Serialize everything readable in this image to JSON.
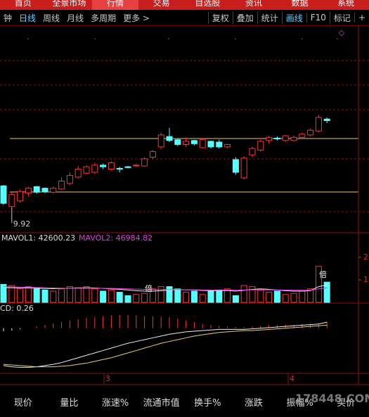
{
  "top_tabs": [
    "首页",
    "全景市场",
    "行情",
    "交易",
    "自选股",
    "资讯",
    "数据",
    "系统"
  ],
  "period_tabs": [
    "钟",
    "日线",
    "周线",
    "月线",
    "多周期",
    "更多 >"
  ],
  "tools": [
    "复权",
    "叠加",
    "统计",
    "画线",
    "F10",
    "标记",
    "+"
  ],
  "chart_data": {
    "type": "candlestick",
    "ylim": [
      9.6,
      12.2
    ],
    "open": [
      10.19,
      9.93,
      10.0,
      10.1,
      10.18,
      10.16,
      10.11,
      10.15,
      10.22,
      10.3,
      10.35,
      10.36,
      10.45,
      10.4,
      10.41,
      10.43,
      10.44,
      10.44,
      10.55,
      10.68,
      10.81,
      10.77,
      10.71,
      10.76,
      10.67,
      10.75,
      10.74,
      10.68,
      10.52,
      10.29,
      10.58,
      10.64,
      10.76,
      10.79,
      10.76,
      10.76,
      10.8,
      10.83,
      10.88,
      11.03
    ],
    "high": [
      10.2,
      10.12,
      10.14,
      10.18,
      10.19,
      10.17,
      10.18,
      10.3,
      10.36,
      10.44,
      10.45,
      10.48,
      10.47,
      10.5,
      10.43,
      10.44,
      10.47,
      10.55,
      10.64,
      10.86,
      10.92,
      10.78,
      10.8,
      10.77,
      10.79,
      10.76,
      10.77,
      10.72,
      10.55,
      10.56,
      10.68,
      10.77,
      10.82,
      10.81,
      10.83,
      10.82,
      10.86,
      10.91,
      11.08,
      11.05
    ],
    "low": [
      9.95,
      9.92,
      9.98,
      10.06,
      10.09,
      10.1,
      10.09,
      10.14,
      10.2,
      10.28,
      10.33,
      10.34,
      10.4,
      10.38,
      10.36,
      10.41,
      10.43,
      10.43,
      10.53,
      10.65,
      10.74,
      10.69,
      10.68,
      10.7,
      10.66,
      10.66,
      10.66,
      10.66,
      10.33,
      10.27,
      10.55,
      10.62,
      10.72,
      10.76,
      10.74,
      10.75,
      10.78,
      10.81,
      10.86,
      10.98
    ],
    "close": [
      9.97,
      10.08,
      10.12,
      10.16,
      10.11,
      10.12,
      10.16,
      10.25,
      10.32,
      10.4,
      10.43,
      10.45,
      10.43,
      10.48,
      10.4,
      10.42,
      10.45,
      10.53,
      10.62,
      10.83,
      10.76,
      10.71,
      10.75,
      10.72,
      10.77,
      10.68,
      10.68,
      10.71,
      10.36,
      10.54,
      10.66,
      10.75,
      10.8,
      10.78,
      10.82,
      10.8,
      10.84,
      10.89,
      11.05,
      11.01
    ],
    "low_label": 9.92,
    "up_color": "#ff3232",
    "down_color": "#54ffff",
    "volume": {
      "label1": "MAVOL1: 42600.23",
      "label2": "MAVOL2: 46984.82",
      "ylim": [
        0,
        3
      ],
      "yticks": [
        1,
        2
      ],
      "values": [
        0.8,
        0.75,
        0.6,
        0.7,
        0.6,
        0.55,
        0.5,
        0.6,
        0.7,
        0.65,
        0.7,
        0.6,
        0.5,
        0.55,
        0.45,
        0.3,
        0.35,
        0.4,
        0.6,
        0.7,
        0.7,
        0.6,
        0.45,
        0.5,
        0.35,
        0.5,
        0.55,
        0.6,
        0.3,
        0.75,
        0.7,
        0.55,
        0.45,
        0.5,
        0.35,
        0.4,
        0.5,
        0.6,
        1.6,
        0.9
      ],
      "ma1": [
        0.66,
        0.65,
        0.64,
        0.64,
        0.63,
        0.62,
        0.61,
        0.62,
        0.63,
        0.64,
        0.65,
        0.64,
        0.62,
        0.6,
        0.58,
        0.55,
        0.52,
        0.5,
        0.5,
        0.52,
        0.55,
        0.56,
        0.56,
        0.55,
        0.53,
        0.52,
        0.52,
        0.53,
        0.5,
        0.54,
        0.58,
        0.6,
        0.58,
        0.55,
        0.52,
        0.5,
        0.5,
        0.52,
        0.7,
        0.78
      ],
      "ma2": [
        0.7,
        0.69,
        0.68,
        0.67,
        0.66,
        0.65,
        0.64,
        0.63,
        0.63,
        0.63,
        0.63,
        0.63,
        0.62,
        0.62,
        0.61,
        0.6,
        0.59,
        0.58,
        0.57,
        0.57,
        0.57,
        0.57,
        0.56,
        0.56,
        0.55,
        0.55,
        0.55,
        0.55,
        0.54,
        0.55,
        0.56,
        0.56,
        0.56,
        0.55,
        0.55,
        0.54,
        0.54,
        0.54,
        0.6,
        0.65
      ],
      "marker": "倍"
    },
    "macd": {
      "label": "CD: 0.26",
      "ylim": [
        -0.75,
        0.3
      ],
      "bars": [
        -0.05,
        -0.04,
        -0.02,
        0,
        0.03,
        0.05,
        0.08,
        0.1,
        0.13,
        0.15,
        0.17,
        0.18,
        0.2,
        0.21,
        0.22,
        0.22,
        0.21,
        0.2,
        0.2,
        0.19,
        0.18,
        0.16,
        0.13,
        0.1,
        0.07,
        0.05,
        0.04,
        0.03,
        0.02,
        0.02,
        0.03,
        0.04,
        0.05,
        0.05,
        0.06,
        0.06,
        0.07,
        0.07,
        0.08,
        0.1
      ],
      "dif": [
        -0.62,
        -0.64,
        -0.65,
        -0.65,
        -0.64,
        -0.62,
        -0.6,
        -0.57,
        -0.53,
        -0.49,
        -0.45,
        -0.41,
        -0.37,
        -0.33,
        -0.29,
        -0.25,
        -0.22,
        -0.19,
        -0.16,
        -0.13,
        -0.1,
        -0.08,
        -0.06,
        -0.05,
        -0.04,
        -0.03,
        -0.02,
        -0.02,
        -0.02,
        -0.02,
        -0.01,
        0,
        0.01,
        0.02,
        0.03,
        0.04,
        0.05,
        0.06,
        0.07,
        0.1
      ],
      "dea": [
        -0.6,
        -0.61,
        -0.62,
        -0.63,
        -0.64,
        -0.64,
        -0.64,
        -0.63,
        -0.62,
        -0.6,
        -0.58,
        -0.55,
        -0.52,
        -0.49,
        -0.45,
        -0.41,
        -0.37,
        -0.33,
        -0.29,
        -0.25,
        -0.22,
        -0.19,
        -0.16,
        -0.13,
        -0.11,
        -0.09,
        -0.07,
        -0.06,
        -0.05,
        -0.04,
        -0.04,
        -0.03,
        -0.02,
        -0.01,
        0,
        0.01,
        0.02,
        0.03,
        0.04,
        0.05
      ]
    },
    "month_labels": [
      "3",
      "4"
    ]
  },
  "quote_headers": [
    "现价",
    "量比",
    "涨速%",
    "流通市值",
    "换手%",
    "涨跌",
    "振幅%",
    "买价"
  ],
  "watermark": "178448.COM"
}
